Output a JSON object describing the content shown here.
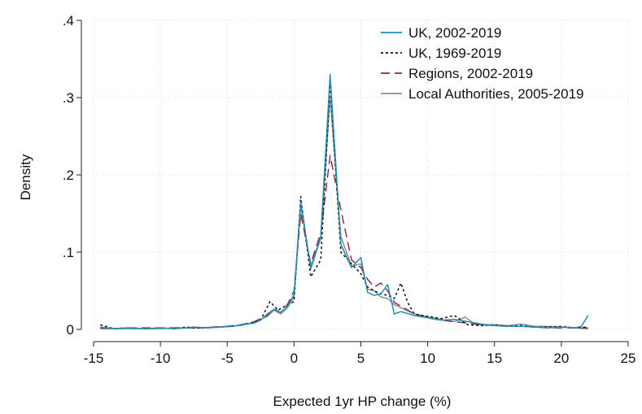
{
  "chart_data": {
    "type": "line",
    "xlabel": "Expected 1yr HP change (%)",
    "ylabel": "Density",
    "xlim": [
      -15,
      25
    ],
    "ylim": [
      0,
      0.4
    ],
    "grid": true,
    "legend_position": "top-right",
    "x_ticks": [
      {
        "value": -15,
        "label": "-15"
      },
      {
        "value": -10,
        "label": "-10"
      },
      {
        "value": -5,
        "label": "-5"
      },
      {
        "value": 0,
        "label": "0"
      },
      {
        "value": 5,
        "label": "5"
      },
      {
        "value": 10,
        "label": "10"
      },
      {
        "value": 15,
        "label": "15"
      },
      {
        "value": 20,
        "label": "20"
      },
      {
        "value": 25,
        "label": "25"
      }
    ],
    "y_ticks": [
      {
        "value": 0,
        "label": "0"
      },
      {
        "value": 0.1,
        "label": ".1"
      },
      {
        "value": 0.2,
        "label": ".2"
      },
      {
        "value": 0.3,
        "label": ".3"
      },
      {
        "value": 0.4,
        "label": ".4"
      }
    ],
    "series": [
      {
        "name": "UK, 2002-2019",
        "color": "#1f8fb5",
        "dash": "solid",
        "points": [
          [
            -14.5,
            0.003
          ],
          [
            -13.5,
            0.001
          ],
          [
            -12.5,
            0.002
          ],
          [
            -11,
            0.001
          ],
          [
            -10,
            0.002
          ],
          [
            -9,
            0.001
          ],
          [
            -8,
            0.002
          ],
          [
            -7.5,
            0.003
          ],
          [
            -6.5,
            0.002
          ],
          [
            -5.5,
            0.003
          ],
          [
            -4.5,
            0.004
          ],
          [
            -4,
            0.006
          ],
          [
            -3,
            0.008
          ],
          [
            -2.5,
            0.012
          ],
          [
            -2,
            0.02
          ],
          [
            -1.5,
            0.026
          ],
          [
            -1,
            0.022
          ],
          [
            -0.5,
            0.03
          ],
          [
            0,
            0.045
          ],
          [
            0.5,
            0.165
          ],
          [
            1.25,
            0.08
          ],
          [
            2,
            0.12
          ],
          [
            2.7,
            0.33
          ],
          [
            3.5,
            0.11
          ],
          [
            4.3,
            0.08
          ],
          [
            5,
            0.093
          ],
          [
            5.5,
            0.048
          ],
          [
            6,
            0.044
          ],
          [
            6.5,
            0.046
          ],
          [
            7,
            0.058
          ],
          [
            7.5,
            0.02
          ],
          [
            8,
            0.023
          ],
          [
            9,
            0.018
          ],
          [
            10,
            0.015
          ],
          [
            11,
            0.012
          ],
          [
            12,
            0.013
          ],
          [
            13,
            0.01
          ],
          [
            14,
            0.007
          ],
          [
            15,
            0.005
          ],
          [
            16,
            0.004
          ],
          [
            17,
            0.004
          ],
          [
            18,
            0.003
          ],
          [
            19,
            0.002
          ],
          [
            20,
            0.003
          ],
          [
            21,
            0.002
          ],
          [
            21.5,
            0.004
          ],
          [
            22,
            0.018
          ]
        ]
      },
      {
        "name": "UK, 1969-2019",
        "color": "#111111",
        "dash": "dotted",
        "points": [
          [
            -14.5,
            0.006
          ],
          [
            -13.5,
            0.001
          ],
          [
            -12.5,
            0.002
          ],
          [
            -11,
            0.001
          ],
          [
            -10,
            0.002
          ],
          [
            -9,
            0.001
          ],
          [
            -8,
            0.003
          ],
          [
            -7.5,
            0.002
          ],
          [
            -6.5,
            0.002
          ],
          [
            -5.5,
            0.003
          ],
          [
            -4.5,
            0.004
          ],
          [
            -4,
            0.006
          ],
          [
            -3,
            0.009
          ],
          [
            -2.5,
            0.012
          ],
          [
            -1.8,
            0.036
          ],
          [
            -1.2,
            0.025
          ],
          [
            -0.5,
            0.032
          ],
          [
            0,
            0.036
          ],
          [
            0.5,
            0.172
          ],
          [
            1.25,
            0.068
          ],
          [
            2,
            0.09
          ],
          [
            2.7,
            0.32
          ],
          [
            3.5,
            0.1
          ],
          [
            4.3,
            0.085
          ],
          [
            5,
            0.072
          ],
          [
            5.5,
            0.055
          ],
          [
            6,
            0.05
          ],
          [
            6.5,
            0.046
          ],
          [
            7,
            0.044
          ],
          [
            7.5,
            0.04
          ],
          [
            8,
            0.06
          ],
          [
            8.5,
            0.035
          ],
          [
            9,
            0.02
          ],
          [
            10,
            0.017
          ],
          [
            11,
            0.014
          ],
          [
            12,
            0.018
          ],
          [
            12.5,
            0.012
          ],
          [
            13,
            0.006
          ],
          [
            14,
            0.005
          ],
          [
            15,
            0.006
          ],
          [
            16,
            0.004
          ],
          [
            17,
            0.005
          ],
          [
            18,
            0.003
          ],
          [
            19,
            0.003
          ],
          [
            20,
            0.004
          ],
          [
            21,
            0.002
          ],
          [
            22,
            0.003
          ]
        ]
      },
      {
        "name": "Regions, 2002-2019",
        "color": "#8b2a4e",
        "dash": "dashed",
        "points": [
          [
            -14.5,
            0.002
          ],
          [
            -13.5,
            0.001
          ],
          [
            -12.5,
            0.002
          ],
          [
            -11,
            0.002
          ],
          [
            -10,
            0.002
          ],
          [
            -9,
            0.002
          ],
          [
            -8,
            0.002
          ],
          [
            -7,
            0.002
          ],
          [
            -6,
            0.003
          ],
          [
            -5,
            0.004
          ],
          [
            -4,
            0.006
          ],
          [
            -3,
            0.01
          ],
          [
            -2,
            0.018
          ],
          [
            -1.5,
            0.027
          ],
          [
            -1,
            0.022
          ],
          [
            -0.5,
            0.032
          ],
          [
            0,
            0.05
          ],
          [
            0.5,
            0.15
          ],
          [
            1.25,
            0.085
          ],
          [
            2,
            0.125
          ],
          [
            2.7,
            0.225
          ],
          [
            3.5,
            0.155
          ],
          [
            4.3,
            0.09
          ],
          [
            5,
            0.08
          ],
          [
            5.5,
            0.065
          ],
          [
            6,
            0.055
          ],
          [
            6.5,
            0.06
          ],
          [
            7,
            0.05
          ],
          [
            7.5,
            0.035
          ],
          [
            8,
            0.03
          ],
          [
            9,
            0.02
          ],
          [
            10,
            0.015
          ],
          [
            11,
            0.012
          ],
          [
            12,
            0.01
          ],
          [
            13,
            0.008
          ],
          [
            14,
            0.006
          ],
          [
            15,
            0.005
          ],
          [
            16,
            0.004
          ],
          [
            17,
            0.004
          ],
          [
            18,
            0.003
          ],
          [
            19,
            0.002
          ],
          [
            20,
            0.002
          ],
          [
            21,
            0.002
          ],
          [
            22,
            0.002
          ]
        ]
      },
      {
        "name": "Local Authorities, 2005-2019",
        "color": "#8c8c8c",
        "dash": "solid",
        "points": [
          [
            -14.5,
            0.001
          ],
          [
            -13.5,
            0.001
          ],
          [
            -12.5,
            0.001
          ],
          [
            -11,
            0.001
          ],
          [
            -10,
            0.001
          ],
          [
            -9,
            0.002
          ],
          [
            -8,
            0.002
          ],
          [
            -7,
            0.002
          ],
          [
            -6,
            0.003
          ],
          [
            -5,
            0.004
          ],
          [
            -4,
            0.005
          ],
          [
            -3,
            0.009
          ],
          [
            -2,
            0.017
          ],
          [
            -1.5,
            0.025
          ],
          [
            -1,
            0.02
          ],
          [
            -0.5,
            0.028
          ],
          [
            0,
            0.042
          ],
          [
            0.5,
            0.16
          ],
          [
            1.25,
            0.078
          ],
          [
            2,
            0.118
          ],
          [
            2.7,
            0.3
          ],
          [
            3.5,
            0.12
          ],
          [
            4.3,
            0.082
          ],
          [
            5,
            0.085
          ],
          [
            5.5,
            0.052
          ],
          [
            6,
            0.05
          ],
          [
            6.5,
            0.042
          ],
          [
            7,
            0.04
          ],
          [
            7.5,
            0.032
          ],
          [
            8,
            0.028
          ],
          [
            9,
            0.02
          ],
          [
            10,
            0.016
          ],
          [
            11,
            0.013
          ],
          [
            12,
            0.01
          ],
          [
            12.8,
            0.016
          ],
          [
            13.5,
            0.007
          ],
          [
            14,
            0.006
          ],
          [
            15,
            0.006
          ],
          [
            16,
            0.005
          ],
          [
            17,
            0.007
          ],
          [
            18,
            0.004
          ],
          [
            19,
            0.004
          ],
          [
            20,
            0.003
          ],
          [
            21,
            0.002
          ],
          [
            22,
            0.001
          ]
        ]
      }
    ]
  }
}
